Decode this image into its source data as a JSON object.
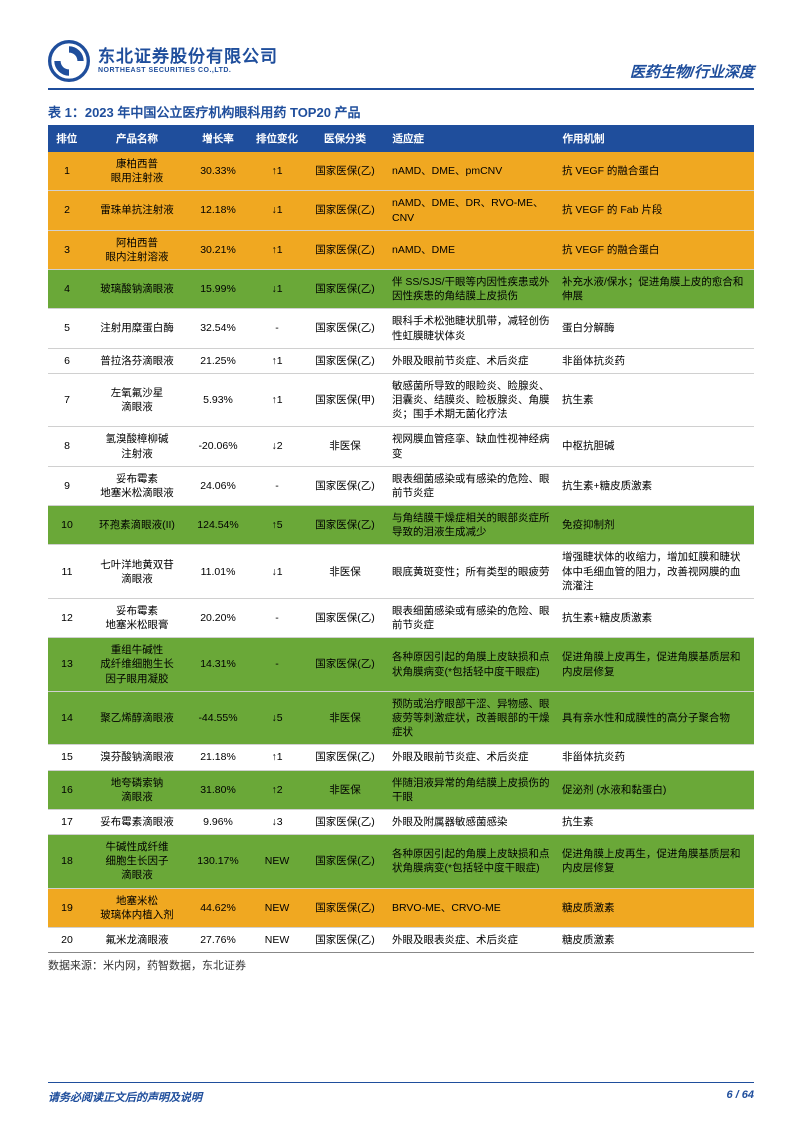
{
  "header": {
    "logo_cn": "东北证券股份有限公司",
    "logo_en": "NORTHEAST SECURITIES CO.,LTD.",
    "doc_type": "医药生物/行业深度"
  },
  "table": {
    "title": "表 1：2023 年中国公立医疗机构眼科用药 TOP20 产品",
    "columns": [
      "排位",
      "产品名称",
      "增长率",
      "排位变化",
      "医保分类",
      "适应症",
      "作用机制"
    ],
    "rows": [
      {
        "hl": "orange",
        "rank": "1",
        "name": "康柏西普\n眼用注射液",
        "growth": "30.33%",
        "change": "↑1",
        "ins": "国家医保(乙)",
        "ind": "nAMD、DME、pmCNV",
        "mech": "抗 VEGF 的融合蛋白"
      },
      {
        "hl": "orange",
        "rank": "2",
        "name": "雷珠单抗注射液",
        "growth": "12.18%",
        "change": "↓1",
        "ins": "国家医保(乙)",
        "ind": "nAMD、DME、DR、RVO-ME、CNV",
        "mech": "抗 VEGF 的 Fab 片段"
      },
      {
        "hl": "orange",
        "rank": "3",
        "name": "阿柏西普\n眼内注射溶液",
        "growth": "30.21%",
        "change": "↑1",
        "ins": "国家医保(乙)",
        "ind": "nAMD、DME",
        "mech": "抗 VEGF 的融合蛋白"
      },
      {
        "hl": "green",
        "rank": "4",
        "name": "玻璃酸钠滴眼液",
        "growth": "15.99%",
        "change": "↓1",
        "ins": "国家医保(乙)",
        "ind": "伴 SS/SJS/干眼等内因性疾患或外因性疾患的角结膜上皮损伤",
        "mech": "补充水液/保水；促进角膜上皮的愈合和伸展"
      },
      {
        "hl": "",
        "rank": "5",
        "name": "注射用糜蛋白酶",
        "growth": "32.54%",
        "change": "-",
        "ins": "国家医保(乙)",
        "ind": "眼科手术松弛睫状肌带，减轻创伤性虹膜睫状体炎",
        "mech": "蛋白分解酶"
      },
      {
        "hl": "",
        "rank": "6",
        "name": "普拉洛芬滴眼液",
        "growth": "21.25%",
        "change": "↑1",
        "ins": "国家医保(乙)",
        "ind": "外眼及眼前节炎症、术后炎症",
        "mech": "非甾体抗炎药"
      },
      {
        "hl": "",
        "rank": "7",
        "name": "左氧氟沙星\n滴眼液",
        "growth": "5.93%",
        "change": "↑1",
        "ins": "国家医保(甲)",
        "ind": "敏感菌所导致的眼睑炎、睑腺炎、泪囊炎、结膜炎、睑板腺炎、角膜炎；围手术期无菌化疗法",
        "mech": "抗生素"
      },
      {
        "hl": "",
        "rank": "8",
        "name": "氢溴酸樟柳碱\n注射液",
        "growth": "-20.06%",
        "change": "↓2",
        "ins": "非医保",
        "ind": "视网膜血管痉挛、缺血性视神经病变",
        "mech": "中枢抗胆碱"
      },
      {
        "hl": "",
        "rank": "9",
        "name": "妥布霉素\n地塞米松滴眼液",
        "growth": "24.06%",
        "change": "-",
        "ins": "国家医保(乙)",
        "ind": "眼表细菌感染或有感染的危险、眼前节炎症",
        "mech": "抗生素+糖皮质激素"
      },
      {
        "hl": "green",
        "rank": "10",
        "name": "环孢素滴眼液(II)",
        "growth": "124.54%",
        "change": "↑5",
        "ins": "国家医保(乙)",
        "ind": "与角结膜干燥症相关的眼部炎症所导致的泪液生成减少",
        "mech": "免疫抑制剂"
      },
      {
        "hl": "",
        "rank": "11",
        "name": "七叶洋地黄双苷\n滴眼液",
        "growth": "11.01%",
        "change": "↓1",
        "ins": "非医保",
        "ind": "眼底黄斑变性；所有类型的眼疲劳",
        "mech": "增强睫状体的收缩力，增加虹膜和睫状体中毛细血管的阻力，改善视网膜的血流灌注"
      },
      {
        "hl": "",
        "rank": "12",
        "name": "妥布霉素\n地塞米松眼膏",
        "growth": "20.20%",
        "change": "-",
        "ins": "国家医保(乙)",
        "ind": "眼表细菌感染或有感染的危险、眼前节炎症",
        "mech": "抗生素+糖皮质激素"
      },
      {
        "hl": "green",
        "rank": "13",
        "name": "重组牛碱性\n成纤维细胞生长\n因子眼用凝胶",
        "growth": "14.31%",
        "change": "-",
        "ins": "国家医保(乙)",
        "ind": "各种原因引起的角膜上皮缺损和点状角膜病变(*包括轻中度干眼症)",
        "mech": "促进角膜上皮再生，促进角膜基质层和内皮层修复"
      },
      {
        "hl": "green",
        "rank": "14",
        "name": "聚乙烯醇滴眼液",
        "growth": "-44.55%",
        "change": "↓5",
        "ins": "非医保",
        "ind": "预防或治疗眼部干涩、异物感、眼疲劳等刺激症状，改善眼部的干燥症状",
        "mech": "具有亲水性和成膜性的高分子聚合物"
      },
      {
        "hl": "",
        "rank": "15",
        "name": "溴芬酸钠滴眼液",
        "growth": "21.18%",
        "change": "↑1",
        "ins": "国家医保(乙)",
        "ind": "外眼及眼前节炎症、术后炎症",
        "mech": "非甾体抗炎药"
      },
      {
        "hl": "green",
        "rank": "16",
        "name": "地夸磷索钠\n滴眼液",
        "growth": "31.80%",
        "change": "↑2",
        "ins": "非医保",
        "ind": "伴随泪液异常的角结膜上皮损伤的干眼",
        "mech": "促泌剂 (水液和黏蛋白)"
      },
      {
        "hl": "",
        "rank": "17",
        "name": "妥布霉素滴眼液",
        "growth": "9.96%",
        "change": "↓3",
        "ins": "国家医保(乙)",
        "ind": "外眼及附属器敏感菌感染",
        "mech": "抗生素"
      },
      {
        "hl": "green",
        "rank": "18",
        "name": "牛碱性成纤维\n细胞生长因子\n滴眼液",
        "growth": "130.17%",
        "change": "NEW",
        "ins": "国家医保(乙)",
        "ind": "各种原因引起的角膜上皮缺损和点状角膜病变(*包括轻中度干眼症)",
        "mech": "促进角膜上皮再生，促进角膜基质层和内皮层修复"
      },
      {
        "hl": "orange",
        "rank": "19",
        "name": "地塞米松\n玻璃体内植入剂",
        "growth": "44.62%",
        "change": "NEW",
        "ins": "国家医保(乙)",
        "ind": "BRVO-ME、CRVO-ME",
        "mech": "糖皮质激素"
      },
      {
        "hl": "",
        "rank": "20",
        "name": "氟米龙滴眼液",
        "growth": "27.76%",
        "change": "NEW",
        "ins": "国家医保(乙)",
        "ind": "外眼及眼表炎症、术后炎症",
        "mech": "糖皮质激素"
      }
    ],
    "source": "数据来源：米内网，药智数据，东北证券"
  },
  "footer": {
    "disclaimer": "请务必阅读正文后的声明及说明",
    "page": "6 / 64"
  },
  "colors": {
    "brand": "#1f4e9c",
    "orange": "#f0a821",
    "green": "#6aa838"
  }
}
